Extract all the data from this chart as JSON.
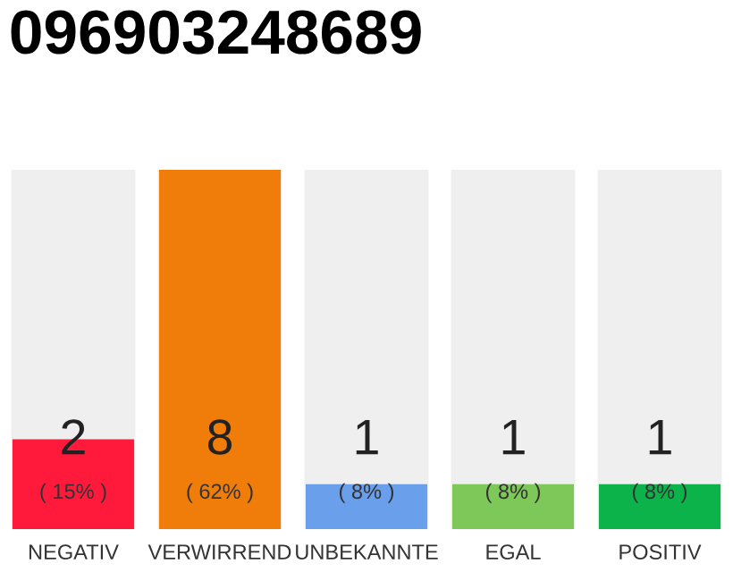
{
  "chart_data": {
    "type": "bar",
    "title": "096903248689",
    "categories": [
      "NEGATIV",
      "VERWIRREND",
      "UNBEKANNTE",
      "EGAL",
      "POSITIV"
    ],
    "values": [
      2,
      8,
      1,
      1,
      1
    ],
    "colors": [
      "#ff1a3c",
      "#f07c0a",
      "#6a9fec",
      "#7ec85a",
      "#0cb34a"
    ],
    "value_labels": [
      "2\n( 15% )",
      "8\n( 62% )",
      "1\n( 8% )",
      "1\n( 8% )",
      "1\n( 8% )"
    ],
    "ylim": [
      0,
      8
    ],
    "tick_labels": "x",
    "grid": false,
    "legend": false
  }
}
